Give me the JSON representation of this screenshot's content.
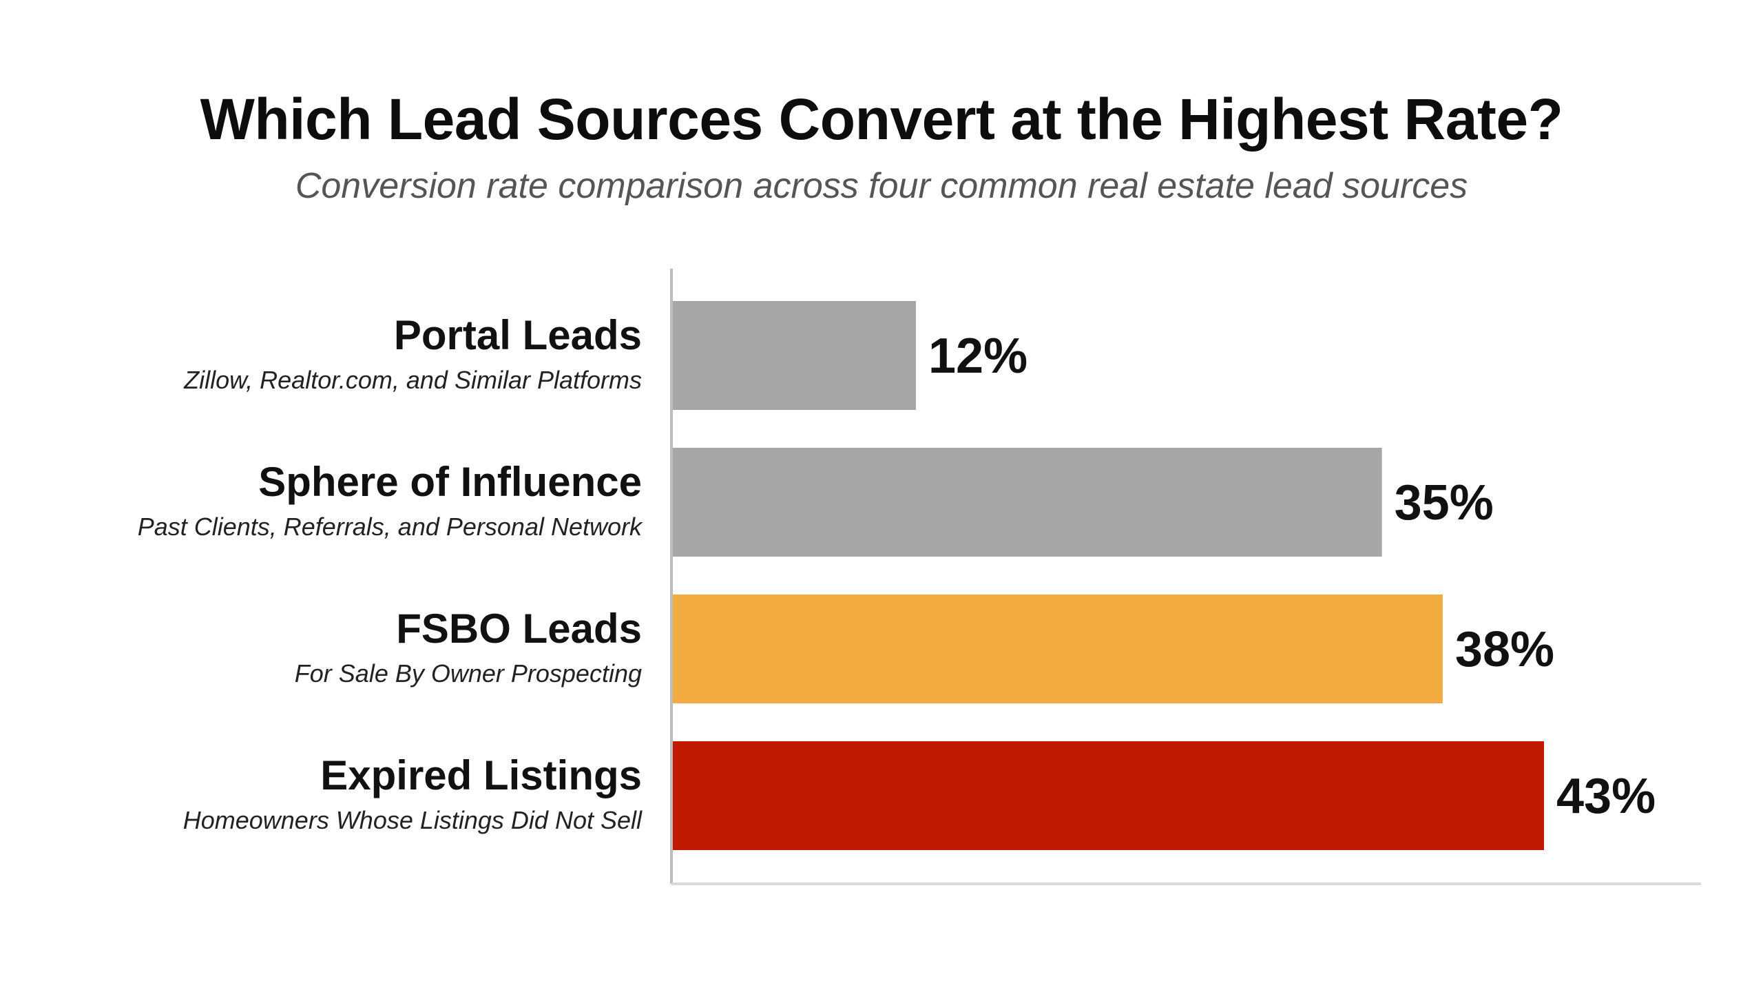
{
  "title": "Which Lead Sources Convert at the Highest Rate?",
  "subtitle": "Conversion rate comparison across four common real estate lead sources",
  "chart_data": {
    "type": "bar",
    "orientation": "horizontal",
    "title": "Which Lead Sources Convert at the Highest Rate?",
    "subtitle": "Conversion rate comparison across four common real estate lead sources",
    "categories": [
      "Portal Leads",
      "Sphere of Influence",
      "FSBO Leads",
      "Expired Listings"
    ],
    "category_descriptions": [
      "Zillow, Realtor.com, and Similar Platforms",
      "Past Clients, Referrals, and Personal Network",
      "For Sale By Owner Prospecting",
      "Homeowners Whose Listings Did Not Sell"
    ],
    "values": [
      12,
      35,
      38,
      43
    ],
    "value_labels": [
      "12%",
      "35%",
      "38%",
      "43%"
    ],
    "bar_colors": [
      "#a6a6a6",
      "#a6a6a6",
      "#f2ab41",
      "#c21a00"
    ],
    "xlim": [
      0,
      51
    ],
    "grid": false,
    "legend": "none"
  }
}
